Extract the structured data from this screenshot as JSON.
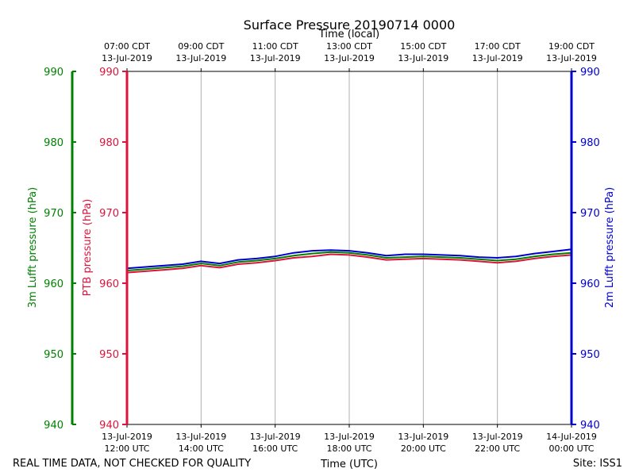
{
  "chart_data": {
    "type": "line",
    "title": "Surface Pressure 20190714 0000",
    "top_axis_label": "Time (local)",
    "bottom_axis_label": "Time (UTC)",
    "x_unit": "hours UTC from 13-Jul-2019 12:00",
    "xlim": [
      0,
      12
    ],
    "ylim": [
      940,
      990
    ],
    "y_ticks": [
      940,
      950,
      960,
      970,
      980,
      990
    ],
    "x_ticks": [
      0,
      2,
      4,
      6,
      8,
      10,
      12
    ],
    "bottom_ticks": [
      {
        "date": "13-Jul-2019",
        "time": "12:00 UTC"
      },
      {
        "date": "13-Jul-2019",
        "time": "14:00 UTC"
      },
      {
        "date": "13-Jul-2019",
        "time": "16:00 UTC"
      },
      {
        "date": "13-Jul-2019",
        "time": "18:00 UTC"
      },
      {
        "date": "13-Jul-2019",
        "time": "20:00 UTC"
      },
      {
        "date": "13-Jul-2019",
        "time": "22:00 UTC"
      },
      {
        "date": "14-Jul-2019",
        "time": "00:00 UTC"
      }
    ],
    "top_ticks": [
      {
        "time": "07:00 CDT",
        "date": "13-Jul-2019"
      },
      {
        "time": "09:00 CDT",
        "date": "13-Jul-2019"
      },
      {
        "time": "11:00 CDT",
        "date": "13-Jul-2019"
      },
      {
        "time": "13:00 CDT",
        "date": "13-Jul-2019"
      },
      {
        "time": "15:00 CDT",
        "date": "13-Jul-2019"
      },
      {
        "time": "17:00 CDT",
        "date": "13-Jul-2019"
      },
      {
        "time": "19:00 CDT",
        "date": "13-Jul-2019"
      }
    ],
    "axes": {
      "outer_left": {
        "label": "3m Lufft pressure (hPa)",
        "color": "#008000"
      },
      "inner_left": {
        "label": "PTB pressure (hPa)",
        "color": "#dc143c"
      },
      "right": {
        "label": "2m Lufft pressure (hPa)",
        "color": "#0000cd"
      }
    },
    "series": [
      {
        "name": "PTB pressure",
        "color": "#dc143c",
        "x": [
          0,
          0.5,
          1,
          1.5,
          2,
          2.5,
          3,
          3.5,
          4,
          4.5,
          5,
          5.5,
          6,
          6.5,
          7,
          7.5,
          8,
          8.5,
          9,
          9.5,
          10,
          10.5,
          11,
          11.5,
          12
        ],
        "values": [
          961.5,
          961.7,
          961.9,
          962.1,
          962.5,
          962.2,
          962.7,
          962.9,
          963.2,
          963.6,
          963.8,
          964.1,
          964.0,
          963.7,
          963.3,
          963.4,
          963.5,
          963.4,
          963.3,
          963.1,
          962.9,
          963.1,
          963.5,
          963.8,
          964.0
        ]
      },
      {
        "name": "3m Lufft pressure",
        "color": "#008000",
        "x": [
          0,
          0.5,
          1,
          1.5,
          2,
          2.5,
          3,
          3.5,
          4,
          4.5,
          5,
          5.5,
          6,
          6.5,
          7,
          7.5,
          8,
          8.5,
          9,
          9.5,
          10,
          10.5,
          11,
          11.5,
          12
        ],
        "values": [
          961.8,
          962.0,
          962.2,
          962.4,
          962.8,
          962.5,
          963.0,
          963.2,
          963.5,
          963.9,
          964.2,
          964.4,
          964.3,
          964.0,
          963.6,
          963.7,
          963.8,
          963.7,
          963.6,
          963.4,
          963.2,
          963.4,
          963.8,
          964.1,
          964.3
        ]
      },
      {
        "name": "2m Lufft pressure",
        "color": "#0000cd",
        "x": [
          0,
          0.5,
          1,
          1.5,
          2,
          2.5,
          3,
          3.5,
          4,
          4.5,
          5,
          5.5,
          6,
          6.5,
          7,
          7.5,
          8,
          8.5,
          9,
          9.5,
          10,
          10.5,
          11,
          11.5,
          12
        ],
        "values": [
          962.1,
          962.3,
          962.5,
          962.7,
          963.1,
          962.8,
          963.3,
          963.5,
          963.8,
          964.3,
          964.6,
          964.7,
          964.6,
          964.3,
          963.9,
          964.1,
          964.1,
          964.0,
          963.9,
          963.7,
          963.6,
          963.8,
          964.2,
          964.5,
          964.8
        ]
      }
    ]
  },
  "footer": {
    "disclaimer": "REAL TIME DATA, NOT CHECKED FOR QUALITY",
    "site": "Site: ISS1"
  }
}
